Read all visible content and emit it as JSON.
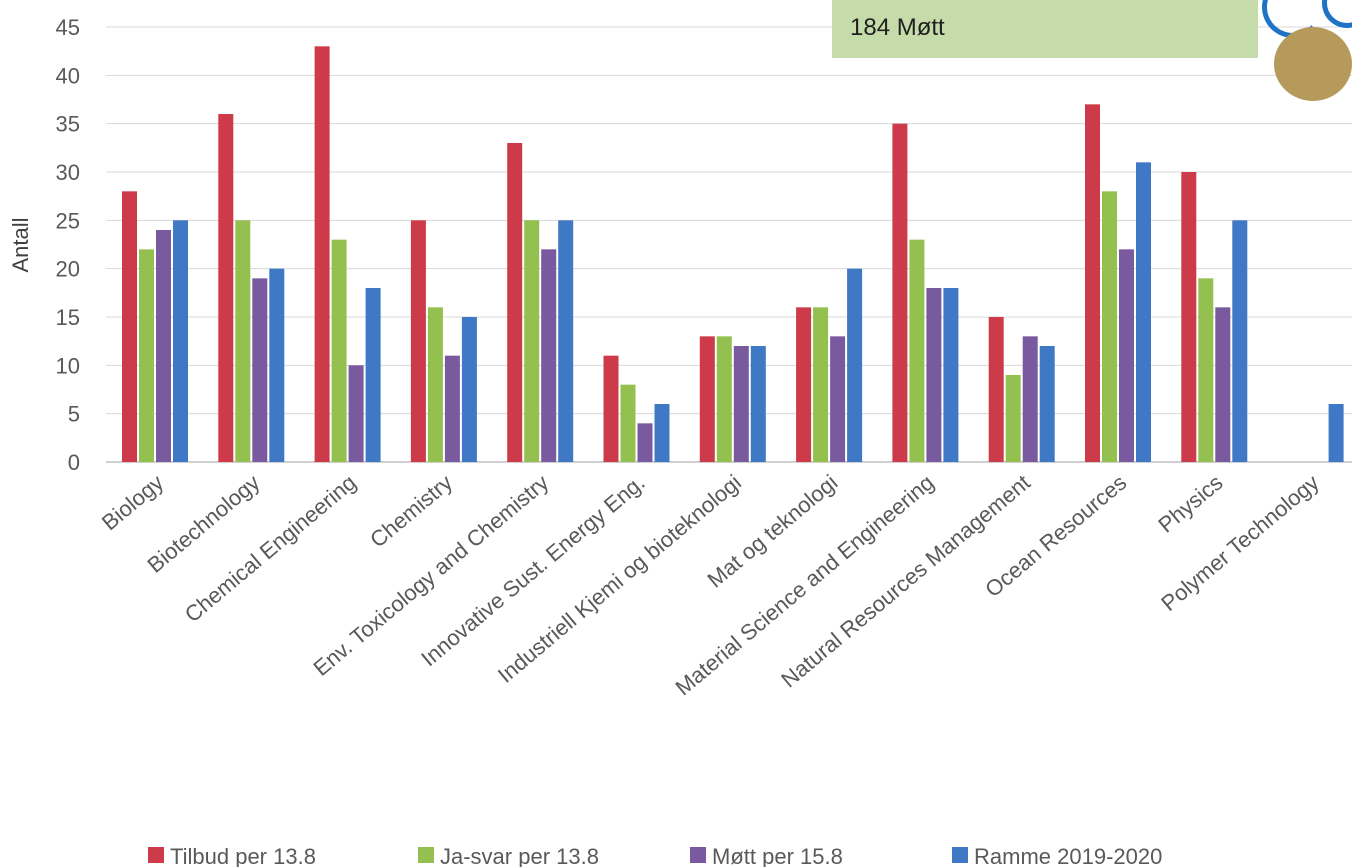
{
  "info_box": {
    "text": "184 Møtt"
  },
  "logo": {
    "name": "institution-logo-icon",
    "colors": [
      "#1d74c4",
      "#b59a5c"
    ]
  },
  "chart_data": {
    "type": "bar",
    "title": "",
    "xlabel": "",
    "ylabel": "Antall",
    "ylim": [
      0,
      45
    ],
    "yticks": [
      0,
      5,
      10,
      15,
      20,
      25,
      30,
      35,
      40,
      45
    ],
    "grid": true,
    "legend_position": "bottom",
    "categories": [
      "Biology",
      "Biotechnology",
      "Chemical Engineering",
      "Chemistry",
      "Env. Toxicology and Chemistry",
      "Innovative Sust. Energy Eng.",
      "Industriell Kjemi og bioteknologi",
      "Mat og teknologi",
      "Material Science and Engineering",
      "Natural Resources Management",
      "Ocean Resources",
      "Physics",
      "Polymer Technology"
    ],
    "series": [
      {
        "name": "Tilbud per 13.8",
        "color": "#cd3a49",
        "values": [
          28,
          36,
          43,
          25,
          33,
          11,
          13,
          16,
          35,
          15,
          37,
          30,
          null
        ]
      },
      {
        "name": "Ja-svar per 13.8",
        "color": "#94c04f",
        "values": [
          22,
          25,
          23,
          16,
          25,
          8,
          13,
          16,
          23,
          9,
          28,
          19,
          null
        ]
      },
      {
        "name": "Møtt per 15.8",
        "color": "#7a5a9f",
        "values": [
          24,
          19,
          10,
          11,
          22,
          4,
          12,
          13,
          18,
          13,
          22,
          16,
          null
        ]
      },
      {
        "name": "Ramme 2019-2020",
        "color": "#3f78c4",
        "values": [
          25,
          20,
          18,
          15,
          25,
          6,
          12,
          20,
          18,
          12,
          31,
          25,
          6
        ]
      }
    ]
  }
}
